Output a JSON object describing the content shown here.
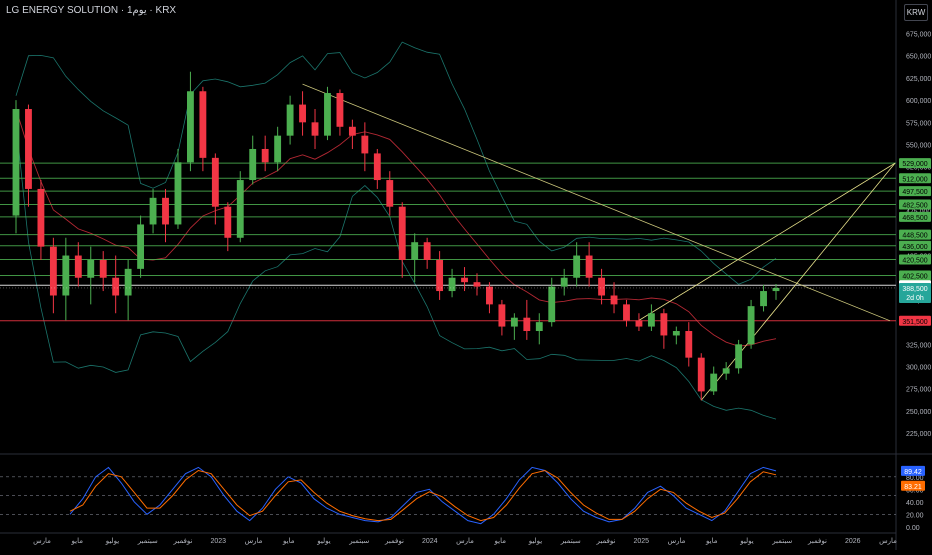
{
  "header": {
    "title": "LG ENERGY SOLUTION · 1يوم · KRX",
    "currency": "KRW"
  },
  "chart_data": {
    "type": "candlestick",
    "price_axis": {
      "ticks": [
        675000,
        650000,
        625000,
        600000,
        575000,
        550000,
        525000,
        500000,
        475000,
        450000,
        425000,
        400000,
        375000,
        350000,
        325000,
        300000,
        275000,
        250000,
        225000
      ],
      "range": [
        206000,
        688000
      ]
    },
    "time_axis_labels": [
      "مارس",
      "مايو",
      "يوليو",
      "سبتمبر",
      "نوفمبر",
      "2023",
      "مارس",
      "مايو",
      "يوليو",
      "سبتمبر",
      "نوفمبر",
      "2024",
      "مارس",
      "مايو",
      "يوليو",
      "سبتمبر",
      "نوفمبر",
      "2025",
      "مارس",
      "مايو",
      "يوليو",
      "سبتمبر",
      "نوفمبر",
      "2026",
      "مارس"
    ],
    "horizontal_levels": [
      {
        "value": 529000,
        "label": "529,000",
        "color": "#4caf50"
      },
      {
        "value": 512000,
        "label": "512,000",
        "color": "#4caf50"
      },
      {
        "value": 497500,
        "label": "497,500",
        "color": "#4caf50"
      },
      {
        "value": 482500,
        "label": "482,500",
        "color": "#4caf50"
      },
      {
        "value": 468500,
        "label": "468,500",
        "color": "#4caf50"
      },
      {
        "value": 448500,
        "label": "448,500",
        "color": "#4caf50"
      },
      {
        "value": 436000,
        "label": "436,000",
        "color": "#4caf50"
      },
      {
        "value": 420500,
        "label": "420,500",
        "color": "#4caf50"
      },
      {
        "value": 402500,
        "label": "402,500",
        "color": "#4caf50"
      },
      {
        "value": 391500,
        "label": "391,500",
        "color": "#ffffff"
      },
      {
        "value": 351500,
        "label": "351,500",
        "color": "#f23645"
      }
    ],
    "last_price": {
      "value": 388500,
      "label": "388,500",
      "countdown": "2d 0h",
      "color": "#26a69a"
    },
    "candles": [
      {
        "t": 0,
        "o": 470000,
        "h": 600000,
        "l": 450000,
        "c": 590000
      },
      {
        "t": 1,
        "o": 590000,
        "h": 595000,
        "l": 480000,
        "c": 500000
      },
      {
        "t": 2,
        "o": 500000,
        "h": 510000,
        "l": 420000,
        "c": 435000
      },
      {
        "t": 3,
        "o": 435000,
        "h": 445000,
        "l": 360000,
        "c": 380000
      },
      {
        "t": 4,
        "o": 380000,
        "h": 445000,
        "l": 352000,
        "c": 425000
      },
      {
        "t": 5,
        "o": 425000,
        "h": 440000,
        "l": 390000,
        "c": 400000
      },
      {
        "t": 6,
        "o": 400000,
        "h": 435000,
        "l": 370000,
        "c": 420000
      },
      {
        "t": 7,
        "o": 420000,
        "h": 430000,
        "l": 385000,
        "c": 400000
      },
      {
        "t": 8,
        "o": 400000,
        "h": 425000,
        "l": 360000,
        "c": 380000
      },
      {
        "t": 9,
        "o": 380000,
        "h": 420000,
        "l": 352000,
        "c": 410000
      },
      {
        "t": 10,
        "o": 410000,
        "h": 470000,
        "l": 400000,
        "c": 460000
      },
      {
        "t": 11,
        "o": 460000,
        "h": 500000,
        "l": 450000,
        "c": 490000
      },
      {
        "t": 12,
        "o": 490000,
        "h": 500000,
        "l": 440000,
        "c": 460000
      },
      {
        "t": 13,
        "o": 460000,
        "h": 545000,
        "l": 455000,
        "c": 530000
      },
      {
        "t": 14,
        "o": 530000,
        "h": 632000,
        "l": 520000,
        "c": 610000
      },
      {
        "t": 15,
        "o": 610000,
        "h": 615000,
        "l": 520000,
        "c": 535000
      },
      {
        "t": 16,
        "o": 535000,
        "h": 540000,
        "l": 460000,
        "c": 480000
      },
      {
        "t": 17,
        "o": 480000,
        "h": 485000,
        "l": 430000,
        "c": 445000
      },
      {
        "t": 18,
        "o": 445000,
        "h": 520000,
        "l": 440000,
        "c": 510000
      },
      {
        "t": 19,
        "o": 510000,
        "h": 560000,
        "l": 505000,
        "c": 545000
      },
      {
        "t": 20,
        "o": 545000,
        "h": 560000,
        "l": 520000,
        "c": 530000
      },
      {
        "t": 21,
        "o": 530000,
        "h": 570000,
        "l": 520000,
        "c": 560000
      },
      {
        "t": 22,
        "o": 560000,
        "h": 605000,
        "l": 550000,
        "c": 595000
      },
      {
        "t": 23,
        "o": 595000,
        "h": 610000,
        "l": 560000,
        "c": 575000
      },
      {
        "t": 24,
        "o": 575000,
        "h": 590000,
        "l": 545000,
        "c": 560000
      },
      {
        "t": 25,
        "o": 560000,
        "h": 615000,
        "l": 555000,
        "c": 608000
      },
      {
        "t": 26,
        "o": 608000,
        "h": 612000,
        "l": 560000,
        "c": 570000
      },
      {
        "t": 27,
        "o": 570000,
        "h": 578000,
        "l": 545000,
        "c": 560000
      },
      {
        "t": 28,
        "o": 560000,
        "h": 575000,
        "l": 520000,
        "c": 540000
      },
      {
        "t": 29,
        "o": 540000,
        "h": 545000,
        "l": 500000,
        "c": 510000
      },
      {
        "t": 30,
        "o": 510000,
        "h": 520000,
        "l": 470000,
        "c": 480000
      },
      {
        "t": 31,
        "o": 480000,
        "h": 485000,
        "l": 400000,
        "c": 420000
      },
      {
        "t": 32,
        "o": 420000,
        "h": 450000,
        "l": 395000,
        "c": 440000
      },
      {
        "t": 33,
        "o": 440000,
        "h": 445000,
        "l": 410000,
        "c": 420000
      },
      {
        "t": 34,
        "o": 420000,
        "h": 430000,
        "l": 375000,
        "c": 385000
      },
      {
        "t": 35,
        "o": 385000,
        "h": 410000,
        "l": 378000,
        "c": 400000
      },
      {
        "t": 36,
        "o": 400000,
        "h": 412000,
        "l": 385000,
        "c": 395000
      },
      {
        "t": 37,
        "o": 395000,
        "h": 405000,
        "l": 380000,
        "c": 390000
      },
      {
        "t": 38,
        "o": 390000,
        "h": 395000,
        "l": 360000,
        "c": 370000
      },
      {
        "t": 39,
        "o": 370000,
        "h": 375000,
        "l": 335000,
        "c": 345000
      },
      {
        "t": 40,
        "o": 345000,
        "h": 360000,
        "l": 330000,
        "c": 355000
      },
      {
        "t": 41,
        "o": 355000,
        "h": 375000,
        "l": 330000,
        "c": 340000
      },
      {
        "t": 42,
        "o": 340000,
        "h": 360000,
        "l": 325000,
        "c": 350000
      },
      {
        "t": 43,
        "o": 350000,
        "h": 400000,
        "l": 345000,
        "c": 390000
      },
      {
        "t": 44,
        "o": 390000,
        "h": 410000,
        "l": 380000,
        "c": 400000
      },
      {
        "t": 45,
        "o": 400000,
        "h": 440000,
        "l": 390000,
        "c": 425000
      },
      {
        "t": 46,
        "o": 425000,
        "h": 440000,
        "l": 390000,
        "c": 400000
      },
      {
        "t": 47,
        "o": 400000,
        "h": 410000,
        "l": 370000,
        "c": 380000
      },
      {
        "t": 48,
        "o": 380000,
        "h": 395000,
        "l": 360000,
        "c": 370000
      },
      {
        "t": 49,
        "o": 370000,
        "h": 375000,
        "l": 345000,
        "c": 352000
      },
      {
        "t": 50,
        "o": 352000,
        "h": 360000,
        "l": 340000,
        "c": 345000
      },
      {
        "t": 51,
        "o": 345000,
        "h": 370000,
        "l": 340000,
        "c": 360000
      },
      {
        "t": 52,
        "o": 360000,
        "h": 365000,
        "l": 320000,
        "c": 335000
      },
      {
        "t": 53,
        "o": 335000,
        "h": 345000,
        "l": 325000,
        "c": 340000
      },
      {
        "t": 54,
        "o": 340000,
        "h": 350000,
        "l": 300000,
        "c": 310000
      },
      {
        "t": 55,
        "o": 310000,
        "h": 315000,
        "l": 262000,
        "c": 272000
      },
      {
        "t": 56,
        "o": 272000,
        "h": 300000,
        "l": 268000,
        "c": 292000
      },
      {
        "t": 57,
        "o": 292000,
        "h": 305000,
        "l": 285000,
        "c": 298000
      },
      {
        "t": 58,
        "o": 298000,
        "h": 330000,
        "l": 292000,
        "c": 325000
      },
      {
        "t": 59,
        "o": 325000,
        "h": 375000,
        "l": 320000,
        "c": 368000
      },
      {
        "t": 60,
        "o": 368000,
        "h": 392000,
        "l": 362000,
        "c": 385000
      },
      {
        "t": 61,
        "o": 385000,
        "h": 393000,
        "l": 375000,
        "c": 388500
      }
    ],
    "oscillator": {
      "type": "stochastic",
      "ticks": [
        80.0,
        60.0,
        40.0,
        20.0,
        0.0
      ],
      "tick_labels": [
        "80.00",
        "60.00",
        "40.00",
        "20.00",
        "0.00"
      ],
      "range": [
        -5,
        110
      ],
      "k_label": "89.42",
      "d_label": "83.21",
      "k_color": "#2962ff",
      "d_color": "#ff6d00",
      "k": [
        20,
        45,
        80,
        95,
        70,
        40,
        20,
        35,
        60,
        85,
        95,
        80,
        50,
        25,
        10,
        30,
        60,
        80,
        70,
        45,
        30,
        20,
        15,
        10,
        8,
        15,
        35,
        55,
        60,
        40,
        25,
        10,
        5,
        20,
        45,
        75,
        95,
        90,
        70,
        45,
        25,
        15,
        8,
        12,
        30,
        55,
        65,
        50,
        30,
        20,
        10,
        25,
        55,
        85,
        95,
        89.42
      ],
      "d": [
        25,
        35,
        65,
        85,
        80,
        55,
        30,
        30,
        50,
        75,
        90,
        85,
        60,
        35,
        18,
        25,
        50,
        72,
        75,
        55,
        38,
        25,
        18,
        13,
        10,
        12,
        28,
        45,
        56,
        48,
        32,
        18,
        10,
        15,
        35,
        62,
        85,
        90,
        78,
        55,
        35,
        22,
        12,
        12,
        25,
        45,
        60,
        55,
        38,
        25,
        15,
        22,
        45,
        72,
        88,
        83.21
      ]
    }
  }
}
